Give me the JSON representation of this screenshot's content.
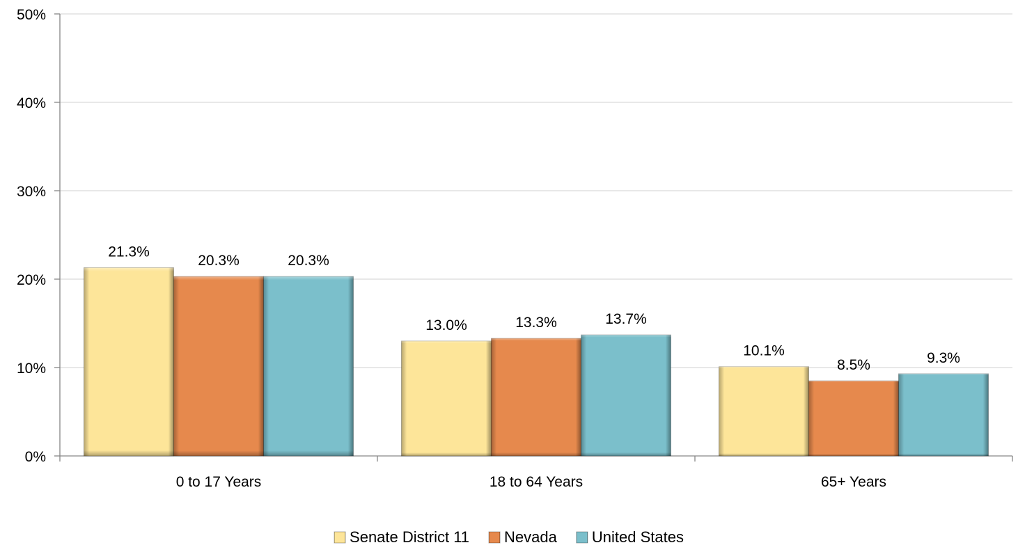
{
  "chart_data": {
    "type": "bar",
    "categories": [
      "0 to 17 Years",
      "18 to 64 Years",
      "65+ Years"
    ],
    "series": [
      {
        "name": "Senate District 11",
        "values": [
          21.3,
          13.0,
          10.1
        ],
        "labels": [
          "21.3%",
          "13.0%",
          "10.1%"
        ],
        "color": "#fde599"
      },
      {
        "name": "Nevada",
        "values": [
          20.3,
          13.3,
          8.5
        ],
        "labels": [
          "20.3%",
          "13.3%",
          "8.5%"
        ],
        "color": "#e6894d"
      },
      {
        "name": "United States",
        "values": [
          20.3,
          13.7,
          9.3
        ],
        "labels": [
          "20.3%",
          "13.7%",
          "9.3%"
        ],
        "color": "#7bbfcb"
      }
    ],
    "ylim": [
      0,
      50
    ],
    "yticks": [
      0,
      10,
      20,
      30,
      40,
      50
    ],
    "ytick_labels": [
      "0%",
      "10%",
      "20%",
      "30%",
      "40%",
      "50%"
    ],
    "grid": true,
    "legend_position": "bottom-center"
  }
}
